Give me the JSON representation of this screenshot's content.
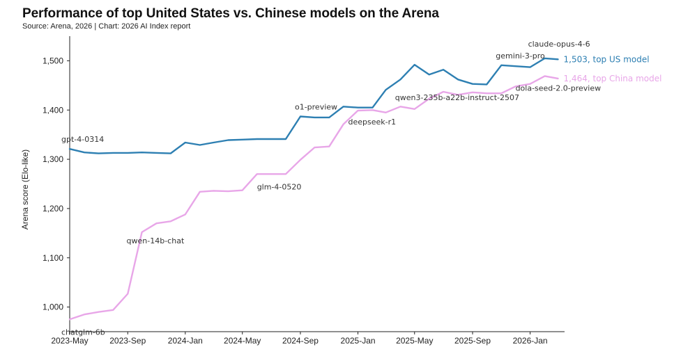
{
  "colors": {
    "us": "#2d7fb2",
    "china": "#e8a6e8",
    "axis": "#222222"
  },
  "chart_data": {
    "type": "line",
    "title": "Performance of top United States vs. Chinese models on the Arena",
    "subtitle": "Source: Arena, 2026 | Chart: 2026 AI Index report",
    "ylabel": "Arena score (Elo-like)",
    "xlabel": "",
    "ylim": [
      950,
      1550
    ],
    "xlim": [
      "2023-05-01",
      "2026-03-15"
    ],
    "grid": false,
    "yticks": [
      1000,
      1100,
      1200,
      1300,
      1400,
      1500
    ],
    "ytick_labels": [
      "1,000",
      "1,100",
      "1,200",
      "1,300",
      "1,400",
      "1,500"
    ],
    "xticks": [
      "2023-05-01",
      "2023-09-01",
      "2024-01-01",
      "2024-05-01",
      "2024-09-01",
      "2025-01-01",
      "2025-05-01",
      "2025-09-01",
      "2026-01-01"
    ],
    "xtick_labels": [
      "2023-May",
      "2023-Sep",
      "2024-Jan",
      "2024-May",
      "2024-Sep",
      "2025-Jan",
      "2025-May",
      "2025-Sep",
      "2026-Jan"
    ],
    "series": [
      {
        "key": "us",
        "end_label": "1,503, top US model",
        "x": [
          "2023-05-01",
          "2023-06-01",
          "2023-07-01",
          "2023-08-01",
          "2023-09-01",
          "2023-10-01",
          "2023-11-01",
          "2023-12-01",
          "2024-01-01",
          "2024-02-01",
          "2024-03-01",
          "2024-04-01",
          "2024-05-01",
          "2024-06-01",
          "2024-07-01",
          "2024-08-01",
          "2024-09-01",
          "2024-10-01",
          "2024-11-01",
          "2024-12-01",
          "2025-01-01",
          "2025-02-01",
          "2025-03-01",
          "2025-04-01",
          "2025-05-01",
          "2025-06-01",
          "2025-07-01",
          "2025-08-01",
          "2025-09-01",
          "2025-10-01",
          "2025-11-01",
          "2025-12-01",
          "2026-01-01",
          "2026-02-01",
          "2026-03-01"
        ],
        "y": [
          1321,
          1314,
          1312,
          1313,
          1313,
          1314,
          1313,
          1312,
          1334,
          1329,
          1334,
          1339,
          1340,
          1341,
          1341,
          1341,
          1387,
          1385,
          1385,
          1407,
          1405,
          1405,
          1441,
          1462,
          1492,
          1472,
          1482,
          1462,
          1453,
          1452,
          1491,
          1489,
          1487,
          1505,
          1503
        ]
      },
      {
        "key": "china",
        "end_label": "1,464, top China model",
        "x": [
          "2023-05-01",
          "2023-06-01",
          "2023-07-01",
          "2023-08-01",
          "2023-09-01",
          "2023-10-01",
          "2023-11-01",
          "2023-12-01",
          "2024-01-01",
          "2024-02-01",
          "2024-03-01",
          "2024-04-01",
          "2024-05-01",
          "2024-06-01",
          "2024-07-01",
          "2024-08-01",
          "2024-09-01",
          "2024-10-01",
          "2024-11-01",
          "2024-12-01",
          "2025-01-01",
          "2025-02-01",
          "2025-03-01",
          "2025-04-01",
          "2025-05-01",
          "2025-06-01",
          "2025-07-01",
          "2025-08-01",
          "2025-09-01",
          "2025-10-01",
          "2025-11-01",
          "2025-12-01",
          "2026-01-01",
          "2026-02-01",
          "2026-03-01"
        ],
        "y": [
          975,
          985,
          990,
          994,
          1027,
          1152,
          1170,
          1174,
          1188,
          1234,
          1236,
          1235,
          1237,
          1270,
          1270,
          1270,
          1299,
          1324,
          1326,
          1371,
          1399,
          1400,
          1395,
          1407,
          1402,
          1423,
          1437,
          1431,
          1436,
          1434,
          1434,
          1448,
          1453,
          1469,
          1464
        ]
      }
    ],
    "annotations": [
      {
        "text": "gpt-4-0314",
        "x": "2023-05-01",
        "y": 1321,
        "dx": -12,
        "dy": -10,
        "anchor": "start"
      },
      {
        "text": "o1-preview",
        "x": "2024-09-01",
        "y": 1387,
        "dx": -8,
        "dy": -10,
        "anchor": "start"
      },
      {
        "text": "gemini-3-pro",
        "x": "2025-11-01",
        "y": 1491,
        "dx": -8,
        "dy": -10,
        "anchor": "start"
      },
      {
        "text": "claude-opus-4-6",
        "x": "2026-02-01",
        "y": 1505,
        "dx": -24,
        "dy": -17,
        "anchor": "start"
      },
      {
        "text": "chatglm-6b",
        "x": "2023-05-01",
        "y": 975,
        "dx": -12,
        "dy": 22,
        "anchor": "start"
      },
      {
        "text": "qwen-14b-chat",
        "x": "2023-10-01",
        "y": 1152,
        "dx": -22,
        "dy": 16,
        "anchor": "start"
      },
      {
        "text": "glm-4-0520",
        "x": "2024-06-01",
        "y": 1270,
        "dx": 0,
        "dy": 22,
        "anchor": "start"
      },
      {
        "text": "deepseek-r1",
        "x": "2025-01-01",
        "y": 1399,
        "dx": -14,
        "dy": 20,
        "anchor": "start"
      },
      {
        "text": "qwen3-235b-a22b-instruct-2507",
        "x": "2025-05-01",
        "y": 1402,
        "dx": -28,
        "dy": -13,
        "anchor": "start"
      },
      {
        "text": "dola-seed-2.0-preview",
        "x": "2026-02-01",
        "y": 1469,
        "dx": -42,
        "dy": 21,
        "anchor": "start"
      }
    ]
  }
}
